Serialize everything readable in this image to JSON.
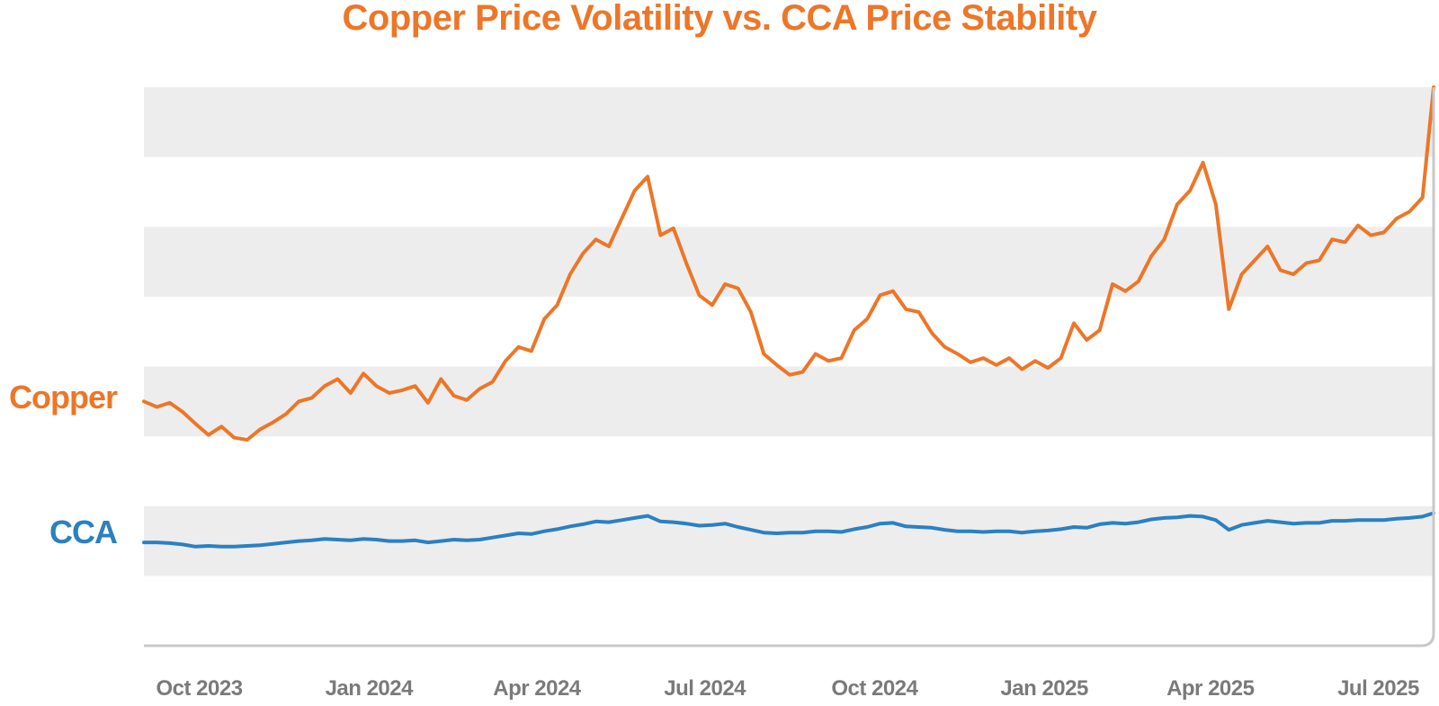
{
  "colors": {
    "copper": "#ED7628",
    "cca": "#2B80C1",
    "band": "#EDEDED",
    "axis": "#C8C8C8",
    "tick_text": "#7A7A7A"
  },
  "chart_data": {
    "type": "line",
    "title": "Copper Price Volatility vs. CCA Price Stability",
    "xlabel": "",
    "ylabel": "",
    "grid": "alternating horizontal bands",
    "x_range": [
      "2023-09-01",
      "2025-07-31"
    ],
    "ylim": [
      0,
      8
    ],
    "x_ticks": [
      {
        "label": "Oct 2023",
        "date": "2023-10-01"
      },
      {
        "label": "Jan 2024",
        "date": "2024-01-01"
      },
      {
        "label": "Apr 2024",
        "date": "2024-04-01"
      },
      {
        "label": "Jul 2024",
        "date": "2024-07-01"
      },
      {
        "label": "Oct 2024",
        "date": "2024-10-01"
      },
      {
        "label": "Jan 2025",
        "date": "2025-01-01"
      },
      {
        "label": "Apr 2025",
        "date": "2025-04-01"
      },
      {
        "label": "Jul 2025",
        "date": "2025-07-01"
      }
    ],
    "series": [
      {
        "name": "Copper",
        "label": "Copper",
        "x": [
          "2023-09-01",
          "2023-09-08",
          "2023-09-15",
          "2023-09-22",
          "2023-09-29",
          "2023-10-06",
          "2023-10-13",
          "2023-10-20",
          "2023-10-27",
          "2023-11-03",
          "2023-11-10",
          "2023-11-17",
          "2023-11-24",
          "2023-12-01",
          "2023-12-08",
          "2023-12-15",
          "2023-12-22",
          "2023-12-29",
          "2024-01-05",
          "2024-01-12",
          "2024-01-19",
          "2024-01-26",
          "2024-02-02",
          "2024-02-09",
          "2024-02-16",
          "2024-02-23",
          "2024-03-01",
          "2024-03-08",
          "2024-03-15",
          "2024-03-22",
          "2024-03-29",
          "2024-04-05",
          "2024-04-12",
          "2024-04-19",
          "2024-04-26",
          "2024-05-03",
          "2024-05-10",
          "2024-05-17",
          "2024-05-24",
          "2024-05-31",
          "2024-06-07",
          "2024-06-14",
          "2024-06-21",
          "2024-06-28",
          "2024-07-05",
          "2024-07-12",
          "2024-07-19",
          "2024-07-26",
          "2024-08-02",
          "2024-08-09",
          "2024-08-16",
          "2024-08-23",
          "2024-08-30",
          "2024-09-06",
          "2024-09-13",
          "2024-09-20",
          "2024-09-27",
          "2024-10-04",
          "2024-10-11",
          "2024-10-18",
          "2024-10-25",
          "2024-11-01",
          "2024-11-08",
          "2024-11-15",
          "2024-11-22",
          "2024-11-29",
          "2024-12-06",
          "2024-12-13",
          "2024-12-20",
          "2024-12-27",
          "2025-01-03",
          "2025-01-10",
          "2025-01-17",
          "2025-01-24",
          "2025-01-31",
          "2025-02-07",
          "2025-02-14",
          "2025-02-21",
          "2025-02-28",
          "2025-03-07",
          "2025-03-14",
          "2025-03-21",
          "2025-03-28",
          "2025-04-04",
          "2025-04-11",
          "2025-04-18",
          "2025-04-25",
          "2025-05-02",
          "2025-05-09",
          "2025-05-16",
          "2025-05-23",
          "2025-05-30",
          "2025-06-06",
          "2025-06-13",
          "2025-06-20",
          "2025-06-27",
          "2025-07-04",
          "2025-07-11",
          "2025-07-18",
          "2025-07-25",
          "2025-07-31"
        ],
        "values": [
          3.5,
          3.42,
          3.48,
          3.35,
          3.18,
          3.02,
          3.14,
          2.98,
          2.95,
          3.1,
          3.2,
          3.32,
          3.5,
          3.55,
          3.72,
          3.82,
          3.62,
          3.9,
          3.72,
          3.62,
          3.66,
          3.72,
          3.48,
          3.82,
          3.58,
          3.52,
          3.68,
          3.78,
          4.08,
          4.28,
          4.22,
          4.68,
          4.88,
          5.32,
          5.62,
          5.82,
          5.72,
          6.12,
          6.52,
          6.72,
          5.88,
          5.98,
          5.48,
          5.02,
          4.88,
          5.18,
          5.12,
          4.78,
          4.18,
          4.02,
          3.88,
          3.92,
          4.18,
          4.08,
          4.12,
          4.52,
          4.68,
          5.02,
          5.08,
          4.82,
          4.78,
          4.48,
          4.28,
          4.18,
          4.06,
          4.12,
          4.02,
          4.12,
          3.96,
          4.08,
          3.98,
          4.12,
          4.62,
          4.38,
          4.52,
          5.18,
          5.08,
          5.22,
          5.58,
          5.82,
          6.32,
          6.52,
          6.92,
          6.32,
          4.82,
          5.32,
          5.52,
          5.72,
          5.38,
          5.32,
          5.48,
          5.52,
          5.82,
          5.78,
          6.02,
          5.88,
          5.92,
          6.12,
          6.22,
          6.42,
          8.0
        ]
      },
      {
        "name": "CCA",
        "label": "CCA",
        "x": [
          "2023-09-01",
          "2023-09-08",
          "2023-09-15",
          "2023-09-22",
          "2023-09-29",
          "2023-10-06",
          "2023-10-13",
          "2023-10-20",
          "2023-10-27",
          "2023-11-03",
          "2023-11-10",
          "2023-11-17",
          "2023-11-24",
          "2023-12-01",
          "2023-12-08",
          "2023-12-15",
          "2023-12-22",
          "2023-12-29",
          "2024-01-05",
          "2024-01-12",
          "2024-01-19",
          "2024-01-26",
          "2024-02-02",
          "2024-02-09",
          "2024-02-16",
          "2024-02-23",
          "2024-03-01",
          "2024-03-08",
          "2024-03-15",
          "2024-03-22",
          "2024-03-29",
          "2024-04-05",
          "2024-04-12",
          "2024-04-19",
          "2024-04-26",
          "2024-05-03",
          "2024-05-10",
          "2024-05-17",
          "2024-05-24",
          "2024-05-31",
          "2024-06-07",
          "2024-06-14",
          "2024-06-21",
          "2024-06-28",
          "2024-07-05",
          "2024-07-12",
          "2024-07-19",
          "2024-07-26",
          "2024-08-02",
          "2024-08-09",
          "2024-08-16",
          "2024-08-23",
          "2024-08-30",
          "2024-09-06",
          "2024-09-13",
          "2024-09-20",
          "2024-09-27",
          "2024-10-04",
          "2024-10-11",
          "2024-10-18",
          "2024-10-25",
          "2024-11-01",
          "2024-11-08",
          "2024-11-15",
          "2024-11-22",
          "2024-11-29",
          "2024-12-06",
          "2024-12-13",
          "2024-12-20",
          "2024-12-27",
          "2025-01-03",
          "2025-01-10",
          "2025-01-17",
          "2025-01-24",
          "2025-01-31",
          "2025-02-07",
          "2025-02-14",
          "2025-02-21",
          "2025-02-28",
          "2025-03-07",
          "2025-03-14",
          "2025-03-21",
          "2025-03-28",
          "2025-04-04",
          "2025-04-11",
          "2025-04-18",
          "2025-04-25",
          "2025-05-02",
          "2025-05-09",
          "2025-05-16",
          "2025-05-23",
          "2025-05-30",
          "2025-06-06",
          "2025-06-13",
          "2025-06-20",
          "2025-06-27",
          "2025-07-04",
          "2025-07-11",
          "2025-07-18",
          "2025-07-25",
          "2025-07-31"
        ],
        "values": [
          1.48,
          1.48,
          1.47,
          1.45,
          1.42,
          1.43,
          1.42,
          1.42,
          1.43,
          1.44,
          1.46,
          1.48,
          1.5,
          1.51,
          1.53,
          1.52,
          1.51,
          1.53,
          1.52,
          1.5,
          1.5,
          1.51,
          1.48,
          1.5,
          1.52,
          1.51,
          1.52,
          1.55,
          1.58,
          1.61,
          1.6,
          1.64,
          1.67,
          1.71,
          1.74,
          1.78,
          1.77,
          1.8,
          1.83,
          1.86,
          1.78,
          1.77,
          1.75,
          1.72,
          1.73,
          1.75,
          1.7,
          1.66,
          1.62,
          1.61,
          1.62,
          1.62,
          1.64,
          1.64,
          1.63,
          1.67,
          1.7,
          1.75,
          1.76,
          1.71,
          1.7,
          1.69,
          1.66,
          1.64,
          1.64,
          1.63,
          1.64,
          1.64,
          1.62,
          1.64,
          1.65,
          1.67,
          1.7,
          1.69,
          1.74,
          1.76,
          1.75,
          1.77,
          1.81,
          1.83,
          1.84,
          1.86,
          1.85,
          1.8,
          1.66,
          1.73,
          1.76,
          1.79,
          1.77,
          1.75,
          1.76,
          1.76,
          1.79,
          1.79,
          1.8,
          1.8,
          1.8,
          1.82,
          1.83,
          1.85,
          1.9
        ]
      }
    ]
  }
}
